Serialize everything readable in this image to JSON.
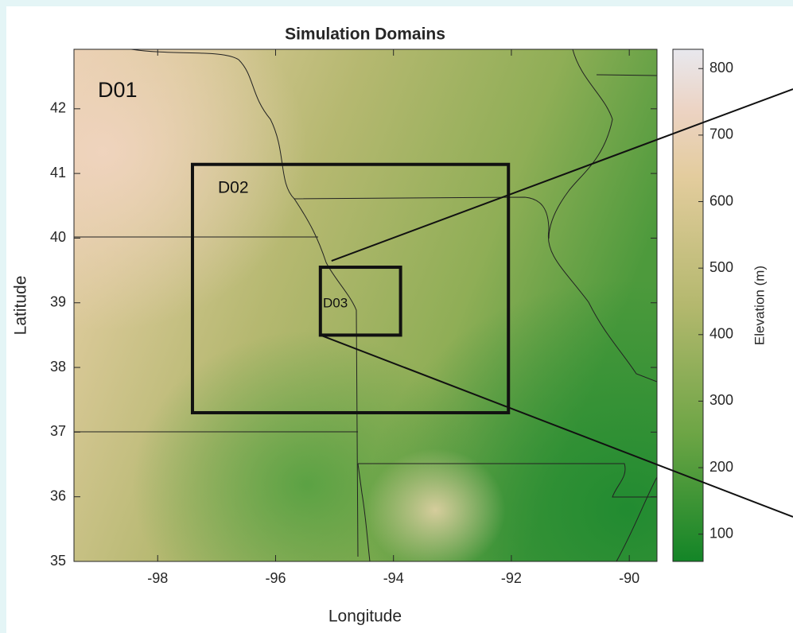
{
  "chart_data": {
    "type": "map",
    "title": "Simulation Domains",
    "xlabel": "Longitude",
    "ylabel": "Latitude",
    "xlim": [
      -99.42,
      -89.53
    ],
    "ylim": [
      35,
      42.92
    ],
    "xticks": [
      -98,
      -96,
      -94,
      -92,
      -90
    ],
    "yticks": [
      35,
      36,
      37,
      38,
      39,
      40,
      41,
      42
    ],
    "colorbar": {
      "label": "Elevation (m)",
      "lim": [
        59,
        829
      ],
      "ticks": [
        100,
        200,
        300,
        400,
        500,
        600,
        700,
        800
      ]
    },
    "domains": [
      {
        "label": "D01"
      },
      {
        "label": "D02",
        "lon": [
          -97.41,
          -92.05
        ],
        "lat": [
          37.3,
          41.14
        ]
      },
      {
        "label": "D03",
        "lon": [
          -95.24,
          -93.88
        ],
        "lat": [
          38.5,
          39.55
        ]
      }
    ]
  }
}
